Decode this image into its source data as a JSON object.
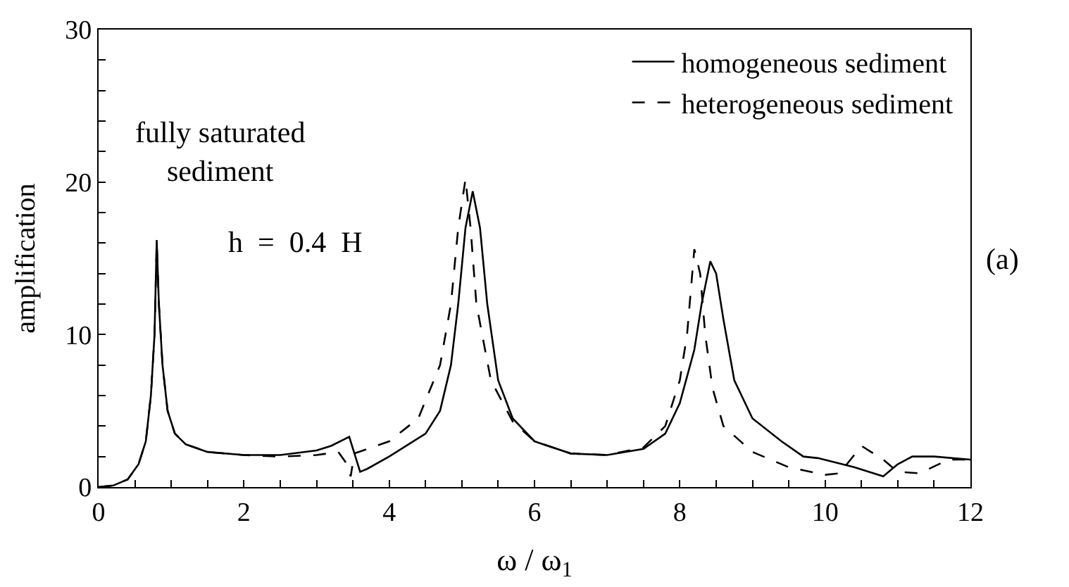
{
  "chart_data": {
    "type": "line",
    "xlabel": "ω / ω$_{1}$",
    "ylabel": "amplification",
    "xlim": [
      0,
      12
    ],
    "ylim": [
      0,
      30
    ],
    "xticks": [
      0,
      {
        "value": 0.5,
        "label": null
      },
      {
        "value": 1,
        "label": null
      },
      {
        "value": 1.5,
        "label": null
      },
      2,
      {
        "value": 2.5,
        "label": null
      },
      {
        "value": 3,
        "label": null
      },
      {
        "value": 3.5,
        "label": null
      },
      4,
      {
        "value": 4.5,
        "label": null
      },
      {
        "value": 5,
        "label": null
      },
      {
        "value": 5.5,
        "label": null
      },
      6,
      {
        "value": 6.5,
        "label": null
      },
      {
        "value": 7,
        "label": null
      },
      {
        "value": 7.5,
        "label": null
      },
      8,
      {
        "value": 8.5,
        "label": null
      },
      {
        "value": 9,
        "label": null
      },
      {
        "value": 9.5,
        "label": null
      },
      10,
      {
        "value": 10.5,
        "label": null
      },
      {
        "value": 11,
        "label": null
      },
      {
        "value": 11.5,
        "label": null
      },
      12
    ],
    "yticks": [
      0,
      {
        "value": 2,
        "label": null
      },
      {
        "value": 4,
        "label": null
      },
      {
        "value": 6,
        "label": null
      },
      {
        "value": 8,
        "label": null
      },
      10,
      {
        "value": 12,
        "label": null
      },
      {
        "value": 14,
        "label": null
      },
      {
        "value": 16,
        "label": null
      },
      {
        "value": 18,
        "label": null
      },
      20,
      {
        "value": 22,
        "label": null
      },
      {
        "value": 24,
        "label": null
      },
      {
        "value": 26,
        "label": null
      },
      {
        "value": 28,
        "label": null
      },
      30
    ],
    "legend": "top right",
    "marker": "none",
    "series": [
      {
        "name": "homogeneous sediment",
        "color": "#000000",
        "line_style": "solid",
        "x": [
          0,
          0.2,
          0.4,
          0.55,
          0.65,
          0.72,
          0.77,
          0.8,
          0.83,
          0.88,
          0.95,
          1.05,
          1.2,
          1.5,
          2,
          2.5,
          3,
          3.2,
          3.45,
          3.6,
          3.7,
          4,
          4.5,
          4.7,
          4.85,
          4.95,
          5.05,
          5.15,
          5.25,
          5.35,
          5.5,
          5.7,
          6,
          6.5,
          7,
          7.5,
          7.8,
          8.0,
          8.2,
          8.3,
          8.42,
          8.5,
          8.6,
          8.75,
          9,
          9.4,
          9.7,
          9.9,
          10.4,
          10.8,
          11,
          11.2,
          11.5,
          12
        ],
        "values": [
          0,
          0.1,
          0.5,
          1.5,
          3,
          6,
          10,
          16.2,
          12,
          8,
          5,
          3.5,
          2.8,
          2.3,
          2.1,
          2.1,
          2.4,
          2.7,
          3.3,
          1.0,
          1.2,
          2,
          3.5,
          5,
          8,
          12,
          17,
          19.4,
          17,
          12,
          7,
          4.5,
          3,
          2.2,
          2.1,
          2.5,
          3.5,
          5.5,
          9,
          12,
          14.8,
          14,
          11,
          7,
          4.5,
          3.0,
          2.0,
          1.9,
          1.3,
          0.7,
          1.5,
          2.0,
          2.0,
          1.8
        ]
      },
      {
        "name": "heterogeneous sediment",
        "color": "#000000",
        "line_style": "dashed",
        "x": [
          0,
          0.2,
          0.4,
          0.55,
          0.65,
          0.72,
          0.77,
          0.8,
          0.83,
          0.88,
          0.95,
          1.05,
          1.2,
          1.5,
          2,
          2.5,
          3,
          3.3,
          3.42,
          3.47,
          3.52,
          4,
          4.4,
          4.7,
          4.85,
          4.95,
          5.05,
          5.12,
          5.2,
          5.4,
          5.7,
          6,
          6.5,
          7,
          7.5,
          7.8,
          8.0,
          8.1,
          8.2,
          8.28,
          8.35,
          8.45,
          8.6,
          9,
          9.5,
          10,
          10.2,
          10.5,
          10.8,
          11.0,
          11.3,
          11.7,
          12
        ],
        "values": [
          0,
          0.1,
          0.5,
          1.5,
          3,
          6,
          10,
          16.0,
          12,
          8,
          5,
          3.5,
          2.8,
          2.3,
          2.1,
          2.0,
          2.1,
          2.3,
          1.5,
          0.7,
          2.2,
          3,
          4.5,
          8,
          12,
          17,
          20.2,
          17,
          12,
          7,
          4.3,
          3,
          2.2,
          2.1,
          2.6,
          4,
          7,
          10,
          15.6,
          14,
          10,
          6.5,
          4,
          2.3,
          1.3,
          0.8,
          0.9,
          2.7,
          1.8,
          1.0,
          0.9,
          1.8,
          1.8
        ]
      }
    ],
    "annotations": [
      "fully saturated\nsediment",
      "h  =  0.4  H",
      "(a)"
    ]
  }
}
